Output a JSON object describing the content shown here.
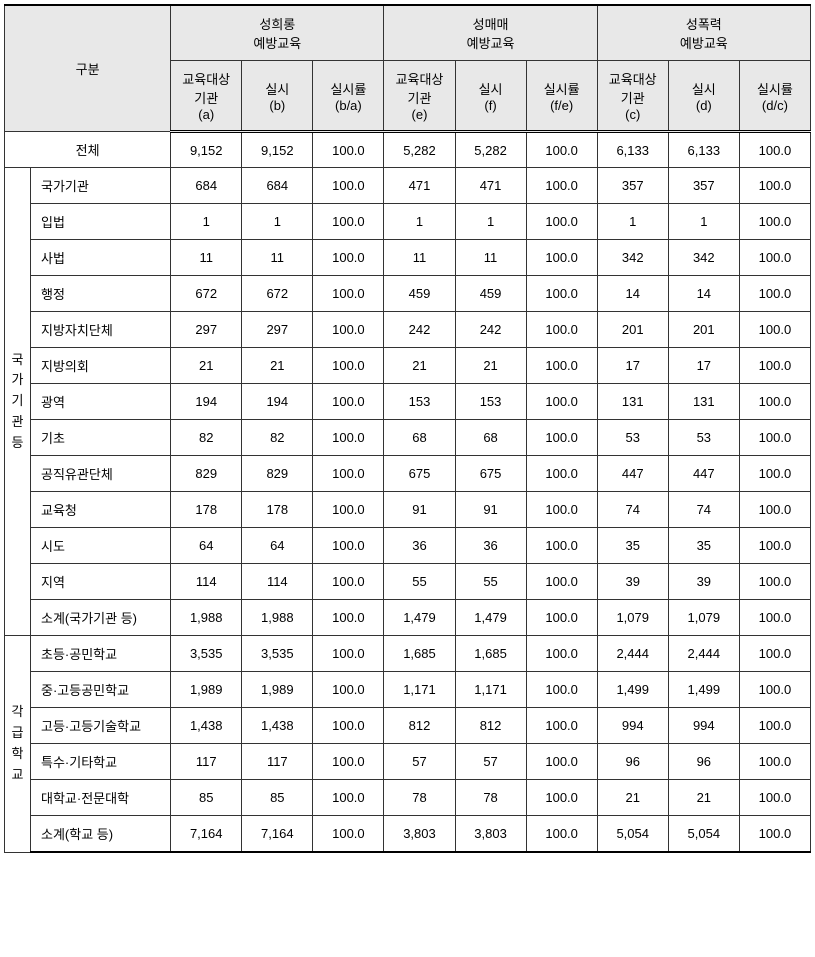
{
  "header": {
    "gubun": "구분",
    "groups": [
      {
        "title": "성희롱\n예방교육",
        "cols": [
          "교육대상\n기관\n(a)",
          "실시\n(b)",
          "실시률\n(b/a)"
        ]
      },
      {
        "title": "성매매\n예방교육",
        "cols": [
          "교육대상\n기관\n(e)",
          "실시\n(f)",
          "실시률\n(f/e)"
        ]
      },
      {
        "title": "성폭력\n예방교육",
        "cols": [
          "교육대상\n기관\n(c)",
          "실시\n(d)",
          "실시률\n(d/c)"
        ]
      }
    ]
  },
  "total_row": {
    "label": "전체",
    "values": [
      "9,152",
      "9,152",
      "100.0",
      "5,282",
      "5,282",
      "100.0",
      "6,133",
      "6,133",
      "100.0"
    ]
  },
  "sections": [
    {
      "label": "국가기관등",
      "rows": [
        {
          "label": "국가기관",
          "values": [
            "684",
            "684",
            "100.0",
            "471",
            "471",
            "100.0",
            "357",
            "357",
            "100.0"
          ]
        },
        {
          "label": "입법",
          "values": [
            "1",
            "1",
            "100.0",
            "1",
            "1",
            "100.0",
            "1",
            "1",
            "100.0"
          ]
        },
        {
          "label": "사법",
          "values": [
            "11",
            "11",
            "100.0",
            "11",
            "11",
            "100.0",
            "342",
            "342",
            "100.0"
          ]
        },
        {
          "label": "행정",
          "values": [
            "672",
            "672",
            "100.0",
            "459",
            "459",
            "100.0",
            "14",
            "14",
            "100.0"
          ]
        },
        {
          "label": "지방자치단체",
          "values": [
            "297",
            "297",
            "100.0",
            "242",
            "242",
            "100.0",
            "201",
            "201",
            "100.0"
          ]
        },
        {
          "label": "지방의회",
          "values": [
            "21",
            "21",
            "100.0",
            "21",
            "21",
            "100.0",
            "17",
            "17",
            "100.0"
          ]
        },
        {
          "label": "광역",
          "values": [
            "194",
            "194",
            "100.0",
            "153",
            "153",
            "100.0",
            "131",
            "131",
            "100.0"
          ]
        },
        {
          "label": "기초",
          "values": [
            "82",
            "82",
            "100.0",
            "68",
            "68",
            "100.0",
            "53",
            "53",
            "100.0"
          ]
        },
        {
          "label": "공직유관단체",
          "values": [
            "829",
            "829",
            "100.0",
            "675",
            "675",
            "100.0",
            "447",
            "447",
            "100.0"
          ]
        },
        {
          "label": "교육청",
          "values": [
            "178",
            "178",
            "100.0",
            "91",
            "91",
            "100.0",
            "74",
            "74",
            "100.0"
          ]
        },
        {
          "label": "시도",
          "values": [
            "64",
            "64",
            "100.0",
            "36",
            "36",
            "100.0",
            "35",
            "35",
            "100.0"
          ]
        },
        {
          "label": "지역",
          "values": [
            "114",
            "114",
            "100.0",
            "55",
            "55",
            "100.0",
            "39",
            "39",
            "100.0"
          ]
        },
        {
          "label": "소계(국가기관 등)",
          "values": [
            "1,988",
            "1,988",
            "100.0",
            "1,479",
            "1,479",
            "100.0",
            "1,079",
            "1,079",
            "100.0"
          ]
        }
      ]
    },
    {
      "label": "각급학교",
      "rows": [
        {
          "label": "초등·공민학교",
          "values": [
            "3,535",
            "3,535",
            "100.0",
            "1,685",
            "1,685",
            "100.0",
            "2,444",
            "2,444",
            "100.0"
          ]
        },
        {
          "label": "중·고등공민학교",
          "values": [
            "1,989",
            "1,989",
            "100.0",
            "1,171",
            "1,171",
            "100.0",
            "1,499",
            "1,499",
            "100.0"
          ]
        },
        {
          "label": "고등·고등기술학교",
          "values": [
            "1,438",
            "1,438",
            "100.0",
            "812",
            "812",
            "100.0",
            "994",
            "994",
            "100.0"
          ]
        },
        {
          "label": "특수·기타학교",
          "values": [
            "117",
            "117",
            "100.0",
            "57",
            "57",
            "100.0",
            "96",
            "96",
            "100.0"
          ]
        },
        {
          "label": "대학교·전문대학",
          "values": [
            "85",
            "85",
            "100.0",
            "78",
            "78",
            "100.0",
            "21",
            "21",
            "100.0"
          ]
        },
        {
          "label": "소계(학교 등)",
          "values": [
            "7,164",
            "7,164",
            "100.0",
            "3,803",
            "3,803",
            "100.0",
            "5,054",
            "5,054",
            "100.0"
          ]
        }
      ]
    }
  ]
}
